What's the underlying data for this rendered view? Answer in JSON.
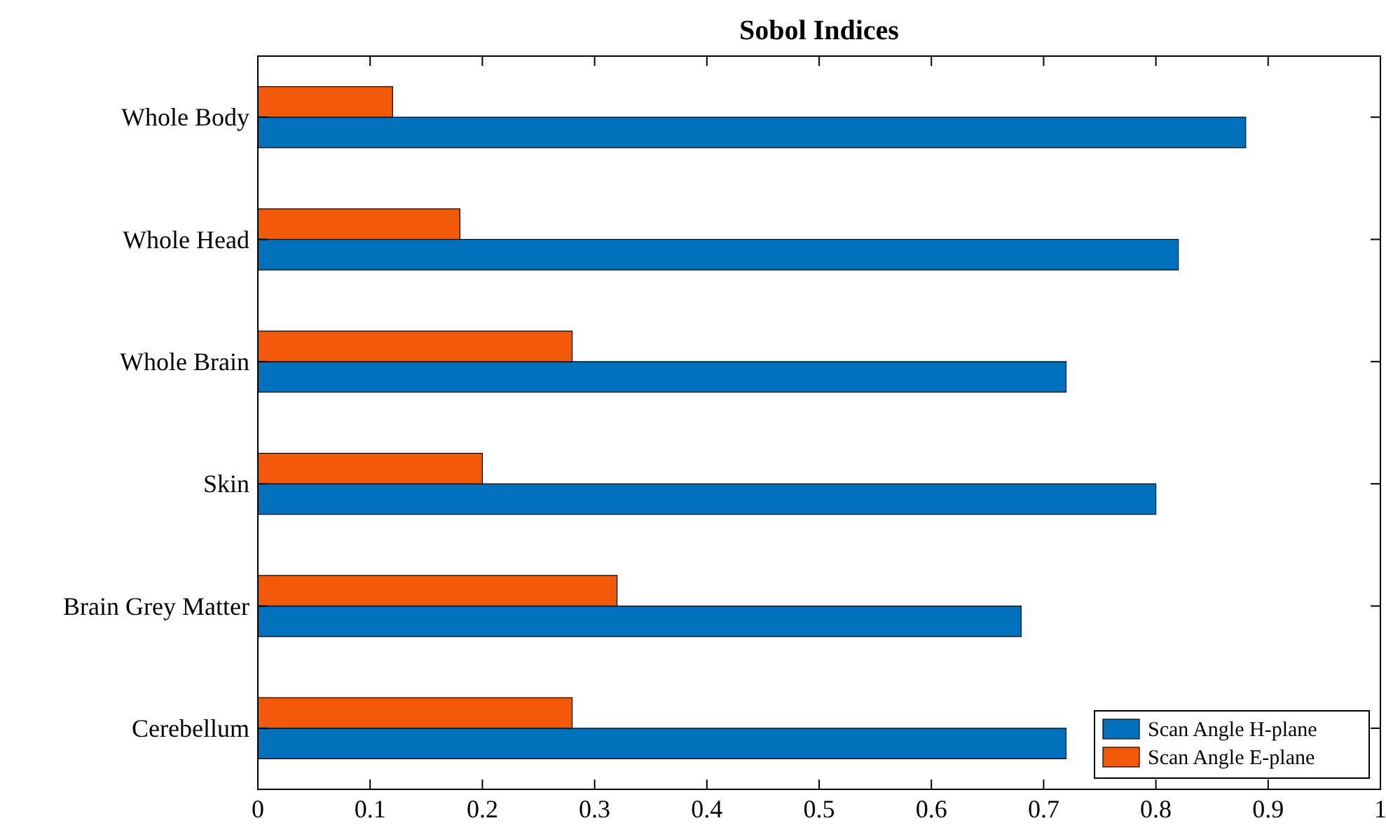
{
  "chart_data": {
    "type": "bar",
    "orientation": "horizontal",
    "title": "Sobol Indices",
    "categories": [
      "Whole Body",
      "Whole Head",
      "Whole Brain",
      "Skin",
      "Brain Grey Matter",
      "Cerebellum"
    ],
    "series": [
      {
        "name": "Scan Angle H-plane",
        "color": "#0072bd",
        "values": [
          0.88,
          0.82,
          0.72,
          0.8,
          0.68,
          0.72
        ]
      },
      {
        "name": "Scan Angle E-plane",
        "color": "#f25a0a",
        "values": [
          0.12,
          0.18,
          0.28,
          0.2,
          0.32,
          0.28
        ]
      }
    ],
    "xlim": [
      0,
      1
    ],
    "xticks": [
      0,
      0.1,
      0.2,
      0.3,
      0.4,
      0.5,
      0.6,
      0.7,
      0.8,
      0.9,
      1
    ],
    "legend": "bottom right",
    "grid": false
  }
}
